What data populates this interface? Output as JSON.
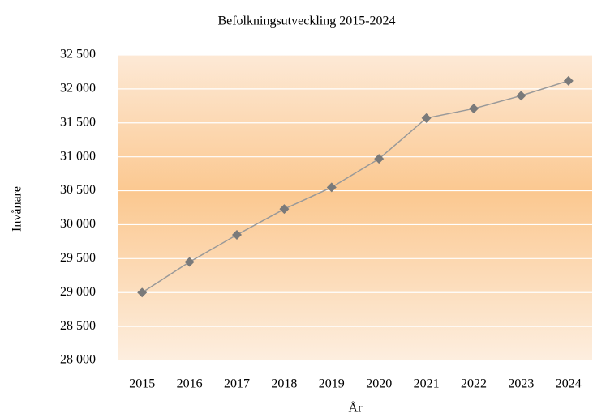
{
  "chart_data": {
    "type": "line",
    "title": "Befolkningsutveckling  2015-2024",
    "x_label": "År",
    "y_label": "Invånare",
    "categories": [
      "2015",
      "2016",
      "2017",
      "2018",
      "2019",
      "2020",
      "2021",
      "2022",
      "2023",
      "2024"
    ],
    "series": [
      {
        "name": "Invånare",
        "color": "#999999",
        "marker_color": "#7a7a7a",
        "values": [
          29000,
          29450,
          29850,
          30230,
          30550,
          30970,
          31570,
          31710,
          31900,
          32120
        ]
      }
    ],
    "ylim": [
      28000,
      32500
    ],
    "yticks": [
      {
        "value": 28000,
        "label": "28 000"
      },
      {
        "value": 28500,
        "label": "28 500"
      },
      {
        "value": 29000,
        "label": "29 000"
      },
      {
        "value": 29500,
        "label": "29 500"
      },
      {
        "value": 30000,
        "label": "30 000"
      },
      {
        "value": 30500,
        "label": "30 500"
      },
      {
        "value": 31000,
        "label": "31 000"
      },
      {
        "value": 31500,
        "label": "31 500"
      },
      {
        "value": 32000,
        "label": "32 000"
      },
      {
        "value": 32500,
        "label": "32 500"
      }
    ],
    "grid": true
  }
}
